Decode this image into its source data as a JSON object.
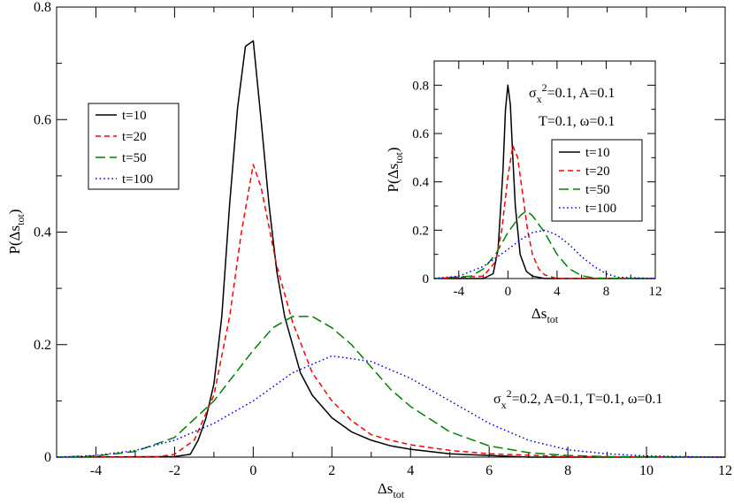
{
  "chart_data": [
    {
      "type": "line",
      "xlabel_main": "Δs",
      "xlabel_sub": "tot",
      "ylabel_main": "P(Δs",
      "ylabel_sub": "tot",
      "ylabel_close": ")",
      "xlim": [
        -5,
        12
      ],
      "ylim": [
        0,
        0.8
      ],
      "xticks": [
        -4,
        -2,
        0,
        2,
        4,
        6,
        8,
        10,
        12
      ],
      "yticks": [
        0,
        0.2,
        0.4,
        0.6,
        0.8
      ],
      "xtick_labels": [
        "-4",
        "-2",
        "0",
        "2",
        "4",
        "6",
        "8",
        "10",
        "12"
      ],
      "ytick_labels": [
        "0",
        "0.2",
        "0.4",
        "0.6",
        "0.8"
      ],
      "legend_position": "upper-left",
      "annotation": {
        "sigma": "σ",
        "sub": "x",
        "sup": "2",
        "rest": "=0.2, A=0.1, T=0.1, ω=0.1"
      },
      "series": [
        {
          "name": "t=10",
          "color": "#000000",
          "dash": "solid",
          "x": [
            -5,
            -2,
            -1.6,
            -1.4,
            -1.2,
            -1.0,
            -0.8,
            -0.6,
            -0.4,
            -0.2,
            0.0,
            0.2,
            0.4,
            0.6,
            0.8,
            1.0,
            1.2,
            1.5,
            2.0,
            2.5,
            3.0,
            3.5,
            4.0,
            5.0,
            6.0,
            7.0,
            12
          ],
          "y": [
            0,
            0.001,
            0.005,
            0.03,
            0.07,
            0.13,
            0.25,
            0.45,
            0.62,
            0.73,
            0.74,
            0.6,
            0.45,
            0.33,
            0.25,
            0.2,
            0.15,
            0.11,
            0.07,
            0.045,
            0.03,
            0.02,
            0.014,
            0.006,
            0.003,
            0.0,
            0.0
          ]
        },
        {
          "name": "t=20",
          "color": "#ff0000",
          "dash": "dashed",
          "x": [
            -5,
            -2.5,
            -2.0,
            -1.5,
            -1.0,
            -0.6,
            -0.3,
            0.0,
            0.2,
            0.4,
            0.6,
            0.8,
            1.0,
            1.5,
            2.0,
            2.5,
            3.0,
            3.5,
            4.0,
            5.0,
            6.0,
            8.0,
            12
          ],
          "y": [
            0,
            0.0,
            0.005,
            0.03,
            0.11,
            0.25,
            0.4,
            0.52,
            0.48,
            0.41,
            0.34,
            0.29,
            0.24,
            0.15,
            0.1,
            0.065,
            0.04,
            0.03,
            0.022,
            0.012,
            0.006,
            0.001,
            0.0
          ]
        },
        {
          "name": "t=50",
          "color": "#008000",
          "dash": "longdash",
          "x": [
            -5,
            -4,
            -3,
            -2,
            -1,
            0,
            0.5,
            1.0,
            1.5,
            2.0,
            2.5,
            3.0,
            3.5,
            4.0,
            5.0,
            6.0,
            7.0,
            8.0,
            9.0,
            12
          ],
          "y": [
            0,
            0.002,
            0.01,
            0.035,
            0.1,
            0.19,
            0.23,
            0.25,
            0.25,
            0.23,
            0.2,
            0.16,
            0.12,
            0.09,
            0.045,
            0.02,
            0.008,
            0.003,
            0.001,
            0.0
          ]
        },
        {
          "name": "t=100",
          "color": "#0000ff",
          "dash": "dotted",
          "x": [
            -5,
            -4,
            -3,
            -2,
            -1,
            0,
            1,
            2,
            3,
            4,
            5,
            6,
            7,
            8,
            9,
            10,
            11,
            12
          ],
          "y": [
            0.0,
            0.003,
            0.012,
            0.03,
            0.06,
            0.1,
            0.15,
            0.18,
            0.17,
            0.14,
            0.1,
            0.06,
            0.03,
            0.013,
            0.006,
            0.002,
            0.001,
            0.0
          ]
        }
      ]
    },
    {
      "type": "line",
      "xlabel_main": "Δs",
      "xlabel_sub": "tot",
      "ylabel_main": "P(Δs",
      "ylabel_sub": "tot",
      "ylabel_close": ")",
      "xlim": [
        -6,
        12
      ],
      "ylim": [
        0,
        0.9
      ],
      "xticks": [
        -4,
        0,
        4,
        8,
        12
      ],
      "yticks": [
        0,
        0.2,
        0.4,
        0.6,
        0.8
      ],
      "xtick_labels": [
        "-4",
        "0",
        "4",
        "8",
        "12"
      ],
      "ytick_labels": [
        "0",
        "0.2",
        "0.4",
        "0.6",
        "0.8"
      ],
      "legend_position": "right",
      "annotation_line1": {
        "sigma": "σ",
        "sub": "x",
        "sup": "2",
        "rest": "=0.1, A=0.1"
      },
      "annotation_line2": "T=0.1, ω=0.1",
      "series": [
        {
          "name": "t=10",
          "color": "#000000",
          "dash": "solid",
          "x": [
            -6,
            -2,
            -1.2,
            -0.8,
            -0.4,
            -0.2,
            0.0,
            0.2,
            0.4,
            0.6,
            1.0,
            1.5,
            2.0,
            3.0,
            12
          ],
          "y": [
            0,
            0.0,
            0.02,
            0.12,
            0.45,
            0.7,
            0.8,
            0.72,
            0.5,
            0.3,
            0.1,
            0.03,
            0.01,
            0.0,
            0.0
          ]
        },
        {
          "name": "t=20",
          "color": "#ff0000",
          "dash": "dashed",
          "x": [
            -6,
            -2,
            -1.0,
            -0.5,
            0.0,
            0.4,
            0.8,
            1.2,
            1.6,
            2.0,
            2.5,
            3.0,
            4.0,
            12
          ],
          "y": [
            0,
            0.01,
            0.07,
            0.2,
            0.42,
            0.55,
            0.5,
            0.35,
            0.2,
            0.1,
            0.04,
            0.015,
            0.0,
            0.0
          ]
        },
        {
          "name": "t=50",
          "color": "#008000",
          "dash": "longdash",
          "x": [
            -6,
            -3,
            -2,
            -1,
            0,
            1,
            1.5,
            2,
            3,
            4,
            5,
            6,
            7,
            12
          ],
          "y": [
            0,
            0.01,
            0.04,
            0.1,
            0.19,
            0.26,
            0.28,
            0.26,
            0.19,
            0.1,
            0.04,
            0.012,
            0.002,
            0.0
          ]
        },
        {
          "name": "t=100",
          "color": "#0000ff",
          "dash": "dotted",
          "x": [
            -6,
            -4,
            -2,
            0,
            1,
            2,
            3,
            4,
            5,
            6,
            7,
            8,
            9,
            12
          ],
          "y": [
            0,
            0.01,
            0.05,
            0.12,
            0.16,
            0.19,
            0.2,
            0.18,
            0.14,
            0.09,
            0.05,
            0.02,
            0.005,
            0.0
          ]
        }
      ]
    }
  ]
}
